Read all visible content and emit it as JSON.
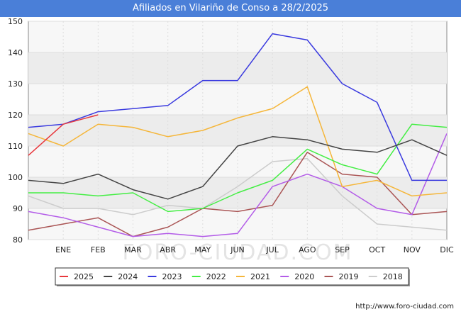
{
  "title": "Afiliados en Vilariño de Conso a 28/2/2025",
  "footer_url": "http://www.foro-ciudad.com",
  "watermark": "FORO-CIUDAD.COM",
  "chart_data": {
    "type": "line",
    "title": "Afiliados en Vilariño de Conso a 28/2/2025",
    "x_tick_labels": [
      "",
      "ENE",
      "FEB",
      "MAR",
      "ABR",
      "MAY",
      "JUN",
      "JUL",
      "AGO",
      "SEP",
      "OCT",
      "NOV",
      "DIC"
    ],
    "y_ticks": [
      80,
      90,
      100,
      110,
      120,
      130,
      140,
      150
    ],
    "ylim": [
      80,
      150
    ],
    "grid": true,
    "legend_position": "bottom",
    "series": [
      {
        "name": "2025",
        "color": "#e8383d",
        "values": [
          107,
          117,
          120
        ]
      },
      {
        "name": "2024",
        "color": "#444444",
        "values": [
          99,
          98,
          101,
          96,
          93,
          97,
          110,
          113,
          112,
          109,
          108,
          112,
          107
        ]
      },
      {
        "name": "2023",
        "color": "#3a3adf",
        "values": [
          116,
          117,
          121,
          122,
          123,
          131,
          131,
          146,
          144,
          130,
          124,
          99,
          99
        ]
      },
      {
        "name": "2022",
        "color": "#44ee44",
        "values": [
          95,
          95,
          94,
          95,
          89,
          90,
          95,
          99,
          109,
          104,
          101,
          117,
          116
        ]
      },
      {
        "name": "2021",
        "color": "#f5b63a",
        "values": [
          114,
          110,
          117,
          116,
          113,
          115,
          119,
          122,
          129,
          97,
          99,
          94,
          95
        ]
      },
      {
        "name": "2020",
        "color": "#b35ce8",
        "values": [
          89,
          87,
          84,
          81,
          82,
          81,
          82,
          97,
          101,
          97,
          90,
          88,
          114
        ]
      },
      {
        "name": "2019",
        "color": "#aa5555",
        "values": [
          83,
          85,
          87,
          81,
          84,
          90,
          89,
          91,
          108,
          101,
          100,
          88,
          89
        ]
      },
      {
        "name": "2018",
        "color": "#cccccc",
        "values": [
          94,
          90,
          90,
          88,
          91,
          90,
          97,
          105,
          106,
          94,
          85,
          84,
          83
        ]
      }
    ]
  }
}
